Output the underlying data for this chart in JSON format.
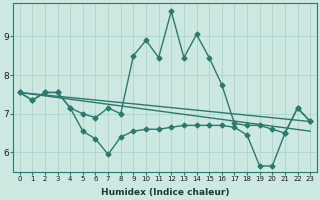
{
  "xlabel": "Humidex (Indice chaleur)",
  "background_color": "#cce8e0",
  "grid_color": "#b0d8ce",
  "line_color": "#2a7a6f",
  "xlim": [
    -0.5,
    23.5
  ],
  "ylim": [
    5.5,
    9.85
  ],
  "xticks": [
    0,
    1,
    2,
    3,
    4,
    5,
    6,
    7,
    8,
    9,
    10,
    11,
    12,
    13,
    14,
    15,
    16,
    17,
    18,
    19,
    20,
    21,
    22,
    23
  ],
  "yticks": [
    6,
    7,
    8,
    9
  ],
  "line_upper_x": [
    0,
    1,
    2,
    3,
    4,
    5,
    6,
    7,
    8,
    9,
    10,
    11,
    12,
    13,
    14,
    15,
    16,
    17,
    18,
    19,
    20,
    21,
    22,
    23
  ],
  "line_upper_y": [
    7.55,
    7.35,
    7.55,
    7.55,
    7.15,
    7.0,
    6.9,
    7.15,
    7.0,
    8.5,
    8.9,
    8.45,
    9.65,
    8.45,
    9.05,
    8.45,
    7.75,
    6.75,
    6.7,
    6.7,
    6.6,
    6.5,
    7.15,
    6.8
  ],
  "line_lower_x": [
    0,
    1,
    2,
    3,
    4,
    5,
    6,
    7,
    8,
    9,
    10,
    11,
    12,
    13,
    14,
    15,
    16,
    17,
    18,
    19,
    20,
    21,
    22,
    23
  ],
  "line_lower_y": [
    7.55,
    7.35,
    7.55,
    7.55,
    7.15,
    6.55,
    6.35,
    5.95,
    6.4,
    6.55,
    6.6,
    6.6,
    6.65,
    6.7,
    6.7,
    6.7,
    6.7,
    6.65,
    6.45,
    5.65,
    5.65,
    6.5,
    7.15,
    6.8
  ],
  "trend1_x": [
    0,
    23
  ],
  "trend1_y": [
    7.55,
    6.55
  ],
  "trend2_x": [
    0,
    23
  ],
  "trend2_y": [
    7.55,
    6.8
  ],
  "marker_size": 2.5,
  "line_width": 1.0
}
